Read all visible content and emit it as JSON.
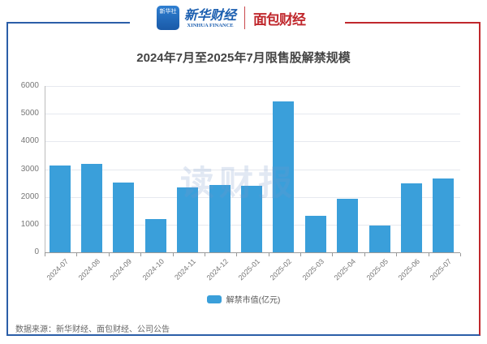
{
  "header": {
    "logo_xinhua_icon_text": "新华社",
    "logo_xinhua_cn": "新华财经",
    "logo_xinhua_en": "XINHUA FINANCE",
    "logo_mianbao": "面包财经"
  },
  "watermark": "读财报",
  "source": "数据来源：新华财经、面包财经、公司公告",
  "legend": {
    "label": "解禁市值(亿元)",
    "color": "#3a9fda"
  },
  "chart_data": {
    "type": "bar",
    "title": "2024年7月至2025年7月限售股解禁规模",
    "xlabel": "",
    "ylabel": "",
    "ylim": [
      0,
      6000
    ],
    "yticks": [
      0,
      1000,
      2000,
      3000,
      4000,
      5000,
      6000
    ],
    "grid": true,
    "legend_position": "bottom",
    "categories": [
      "2024-07",
      "2024-08",
      "2024-09",
      "2024-10",
      "2024-11",
      "2024-12",
      "2025-01",
      "2025-02",
      "2025-03",
      "2025-04",
      "2025-05",
      "2025-06",
      "2025-07"
    ],
    "series": [
      {
        "name": "解禁市值(亿元)",
        "color": "#3a9fda",
        "values": [
          3130,
          3190,
          2510,
          1200,
          2330,
          2430,
          2390,
          5430,
          1320,
          1930,
          960,
          2490,
          2660
        ]
      }
    ]
  }
}
